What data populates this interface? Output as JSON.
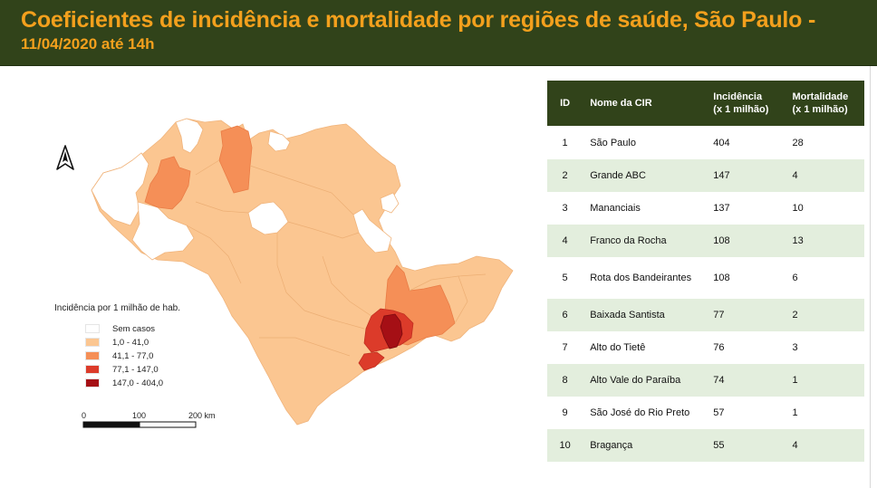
{
  "title": "Coeficientes de incidência e mortalidade por regiões de saúde, São Paulo -",
  "subtitle": "11/04/2020 até 14h",
  "colors": {
    "header_bg": "#31431a",
    "title": "#f3a01d",
    "sem_casos": "#ffffff",
    "c1": "#fbc691",
    "c2": "#f58f57",
    "c3": "#dc3b2a",
    "c4": "#a50f15",
    "row_alt": "#e3eedd"
  },
  "map": {
    "north_arrow_icon": "north-arrow",
    "legend": {
      "title": "Incidência por 1 milhão de hab.",
      "items": [
        {
          "label": "Sem casos",
          "color": "#ffffff"
        },
        {
          "label": "1,0 - 41,0",
          "color": "#fbc691"
        },
        {
          "label": "41,1 - 77,0",
          "color": "#f58f57"
        },
        {
          "label": "77,1 - 147,0",
          "color": "#dc3b2a"
        },
        {
          "label": "147,0 - 404,0",
          "color": "#a50f15"
        }
      ]
    },
    "scale_labels": [
      "0",
      "100",
      "200 km"
    ]
  },
  "table": {
    "headers": {
      "id": "ID",
      "name": "Nome da CIR",
      "inc_line1": "Incidência",
      "inc_line2": "(x 1 milhão)",
      "mort_line1": "Mortalidade",
      "mort_line2": "(x 1 milhão)"
    },
    "rows": [
      {
        "id": "1",
        "name": "São Paulo",
        "inc": "404",
        "mort": "28"
      },
      {
        "id": "2",
        "name": "Grande ABC",
        "inc": "147",
        "mort": "4"
      },
      {
        "id": "3",
        "name": "Mananciais",
        "inc": "137",
        "mort": "10"
      },
      {
        "id": "4",
        "name": "Franco da Rocha",
        "inc": "108",
        "mort": "13"
      },
      {
        "id": "5",
        "name": "Rota dos Bandeirantes",
        "inc": "108",
        "mort": "6"
      },
      {
        "id": "6",
        "name": "Baixada Santista",
        "inc": "77",
        "mort": "2"
      },
      {
        "id": "7",
        "name": "Alto do Tietê",
        "inc": "76",
        "mort": "3"
      },
      {
        "id": "8",
        "name": "Alto Vale do Paraíba",
        "inc": "74",
        "mort": "1"
      },
      {
        "id": "9",
        "name": "São José do Rio Preto",
        "inc": "57",
        "mort": "1"
      },
      {
        "id": "10",
        "name": "Bragança",
        "inc": "55",
        "mort": "4"
      }
    ]
  }
}
